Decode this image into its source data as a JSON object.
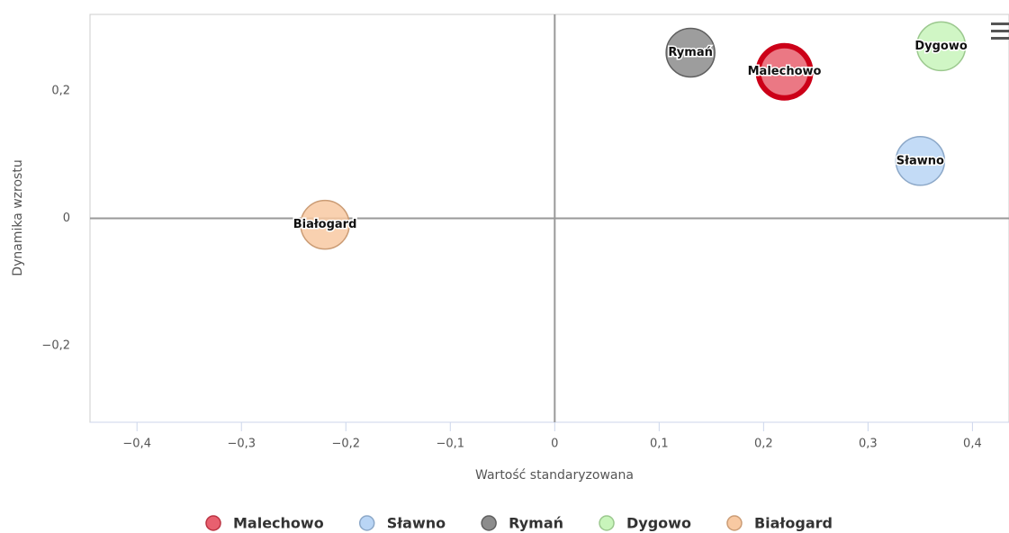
{
  "chart_data": {
    "type": "bubble",
    "xlabel": "Wartość standaryzowana",
    "ylabel": "Dynamika wzrostu",
    "xlim": [
      -0.445,
      0.435
    ],
    "ylim": [
      -0.32,
      0.32
    ],
    "xticks": [
      {
        "value": -0.4,
        "label": "−0,4"
      },
      {
        "value": -0.3,
        "label": "−0,3"
      },
      {
        "value": -0.2,
        "label": "−0,2"
      },
      {
        "value": -0.1,
        "label": "−0,1"
      },
      0,
      {
        "value": 0.1,
        "label": "0,1"
      },
      {
        "value": 0.2,
        "label": "0,2"
      },
      {
        "value": 0.3,
        "label": "0,3"
      },
      {
        "value": 0.4,
        "label": "0,4"
      }
    ],
    "yticks": [
      {
        "value": -0.2,
        "label": "−0,2"
      },
      0,
      {
        "value": 0.2,
        "label": "0,2"
      }
    ],
    "series": [
      {
        "name": "Malechowo",
        "color": "#e8606f",
        "x": [
          0.22
        ],
        "values": [
          0.23
        ]
      },
      {
        "name": "Sławno",
        "color": "#b9d5f5",
        "x": [
          0.35
        ],
        "values": [
          0.09
        ]
      },
      {
        "name": "Rymań",
        "color": "#8c8c8c",
        "x": [
          0.13
        ],
        "values": [
          0.26
        ]
      },
      {
        "name": "Dygowo",
        "color": "#c8f5bb",
        "x": [
          0.37
        ],
        "values": [
          0.27
        ]
      },
      {
        "name": "Białogard",
        "color": "#f8c9a2",
        "x": [
          -0.22
        ],
        "values": [
          -0.01
        ]
      }
    ],
    "legend": "bottom"
  }
}
